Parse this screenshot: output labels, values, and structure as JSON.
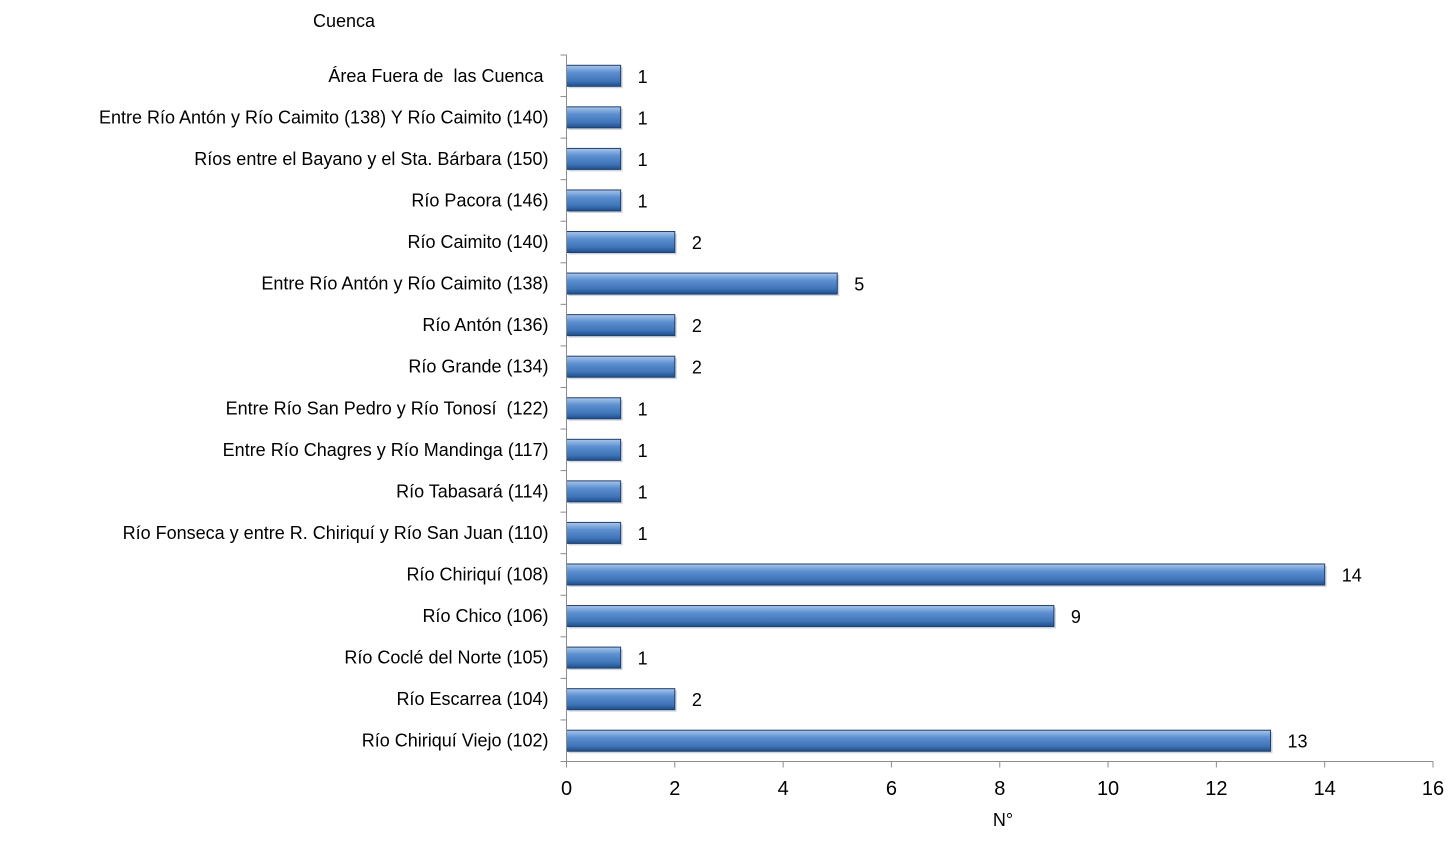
{
  "chart_data": {
    "type": "bar",
    "orientation": "horizontal",
    "title": "",
    "ylabel": "Cuenca",
    "xlabel": "N°",
    "xlim": [
      0,
      16
    ],
    "xticks": [
      0,
      2,
      4,
      6,
      8,
      10,
      12,
      14,
      16
    ],
    "grid": false,
    "legend": "none",
    "bar_color": "#4a7ebb",
    "bar_highlight": "#a9c6ec",
    "bar_shadow": "#1f4e8a",
    "categories": [
      "Río Chiriquí Viejo (102)",
      "Río Escarrea (104)",
      "Río Coclé del Norte (105)",
      "Río Chico (106)",
      "Río Chiriquí (108)",
      "Río Fonseca y entre R. Chiriquí y Río San Juan (110)",
      "Río Tabasará (114)",
      "Entre Río Chagres y Río Mandinga (117)",
      "Entre Río San Pedro y Río Tonosí  (122)",
      "Río Grande (134)",
      "Río Antón (136)",
      "Entre Río Antón y Río Caimito (138)",
      "Río Caimito (140)",
      "Río Pacora (146)",
      "Ríos entre el Bayano y el Sta. Bárbara (150)",
      "Entre Río Antón y Río Caimito (138) Y Río Caimito (140)",
      "Área Fuera de  las Cuenca "
    ],
    "values": [
      13,
      2,
      1,
      9,
      14,
      1,
      1,
      1,
      1,
      2,
      2,
      5,
      2,
      1,
      1,
      1,
      1
    ]
  }
}
